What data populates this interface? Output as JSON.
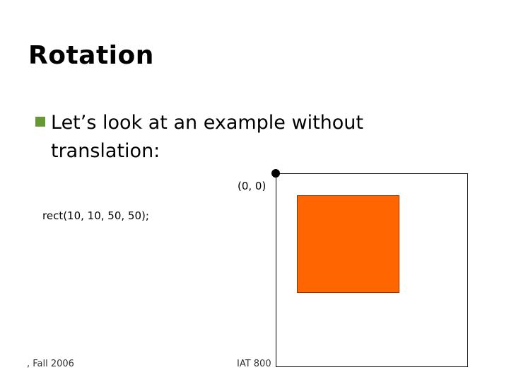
{
  "slide": {
    "title": "Rotation",
    "bullets": [
      "Let’s look at an example without translation:"
    ],
    "origin_label": "(0, 0)",
    "code": "rect(10, 10, 50, 50);",
    "footer": {
      "left": ", Fall 2006",
      "center": "IAT 800"
    }
  }
}
